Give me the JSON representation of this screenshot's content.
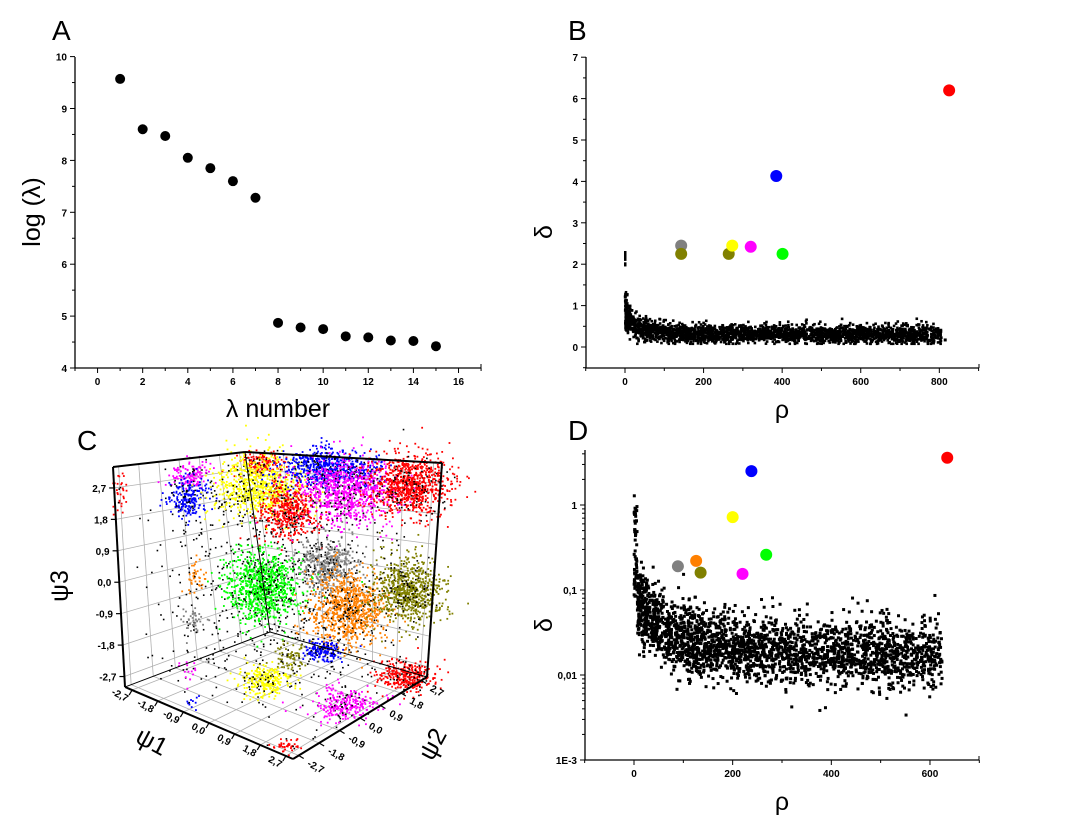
{
  "chart_data": [
    {
      "panel": "A",
      "type": "scatter",
      "xlabel": "λ number",
      "ylabel": "log (λ)",
      "xlim": [
        -1,
        17
      ],
      "ylim": [
        4,
        10
      ],
      "xticks": [
        "0",
        "2",
        "4",
        "6",
        "8",
        "10",
        "12",
        "14",
        "16"
      ],
      "yticks": [
        "4",
        "5",
        "6",
        "7",
        "8",
        "9",
        "10"
      ],
      "grid": false,
      "color": "#000000",
      "points": [
        {
          "x": 1,
          "y": 9.57
        },
        {
          "x": 2,
          "y": 8.6
        },
        {
          "x": 3,
          "y": 8.47
        },
        {
          "x": 4,
          "y": 8.05
        },
        {
          "x": 5,
          "y": 7.85
        },
        {
          "x": 6,
          "y": 7.6
        },
        {
          "x": 7,
          "y": 7.28
        },
        {
          "x": 8,
          "y": 4.87
        },
        {
          "x": 9,
          "y": 4.78
        },
        {
          "x": 10,
          "y": 4.75
        },
        {
          "x": 11,
          "y": 4.61
        },
        {
          "x": 12,
          "y": 4.59
        },
        {
          "x": 13,
          "y": 4.53
        },
        {
          "x": 14,
          "y": 4.52
        },
        {
          "x": 15,
          "y": 4.42
        }
      ]
    },
    {
      "panel": "B",
      "type": "scatter",
      "xlabel": "ρ",
      "ylabel": "δ",
      "xlim": [
        -100,
        900
      ],
      "ylim": [
        -0.5,
        7
      ],
      "xticks": [
        "0",
        "200",
        "400",
        "600",
        "800"
      ],
      "yticks": [
        "0",
        "1",
        "2",
        "3",
        "4",
        "5",
        "6",
        "7"
      ],
      "grid": false,
      "background_color": "#000000",
      "centers": [
        {
          "x": 825,
          "y": 6.2,
          "color": "#ff0000"
        },
        {
          "x": 385,
          "y": 4.13,
          "color": "#0000ff"
        },
        {
          "x": 143,
          "y": 2.45,
          "color": "#808080"
        },
        {
          "x": 143,
          "y": 2.25,
          "color": "#808000"
        },
        {
          "x": 264,
          "y": 2.25,
          "color": "#808000"
        },
        {
          "x": 273,
          "y": 2.45,
          "color": "#ffff00"
        },
        {
          "x": 320,
          "y": 2.42,
          "color": "#ff00ff"
        },
        {
          "x": 401,
          "y": 2.25,
          "color": "#00ff00"
        }
      ]
    },
    {
      "panel": "C",
      "type": "scatter3d",
      "xlabel": "ψ1",
      "ylabel": "ψ2",
      "zlabel": "ψ3",
      "x_ticks": [
        "-2,7",
        "-1,8",
        "-0,9",
        "0,0",
        "0,9",
        "1,8",
        "2,7"
      ],
      "y_ticks": [
        "-2,7",
        "-1,8",
        "-0,9",
        "0,0",
        "0,9",
        "1,8",
        "2,7"
      ],
      "z_ticks": [
        "-2,7",
        "-1,8",
        "-0,9",
        "0,0",
        "0,9",
        "1,8",
        "2,7"
      ],
      "grid": true,
      "cluster_colors": [
        "#ff0000",
        "#0000ff",
        "#ffff00",
        "#ff00ff",
        "#00ff00",
        "#808080",
        "#ff8000",
        "#808000",
        "#000000"
      ]
    },
    {
      "panel": "D",
      "type": "scatter",
      "xlabel": "ρ",
      "ylabel": "δ",
      "xlim": [
        -100,
        700
      ],
      "ylim": [
        0.001,
        4.6
      ],
      "yscale": "log",
      "xticks": [
        "0",
        "200",
        "400",
        "600"
      ],
      "yticks": [
        "1E-3",
        "0,01",
        "0,1",
        "1"
      ],
      "grid": false,
      "background_color": "#000000",
      "centers": [
        {
          "x": 635,
          "y": 3.6,
          "color": "#ff0000"
        },
        {
          "x": 238,
          "y": 2.5,
          "color": "#0000ff"
        },
        {
          "x": 200,
          "y": 0.72,
          "color": "#ffff00"
        },
        {
          "x": 268,
          "y": 0.26,
          "color": "#00ff00"
        },
        {
          "x": 126,
          "y": 0.22,
          "color": "#ff8000"
        },
        {
          "x": 89,
          "y": 0.19,
          "color": "#808080"
        },
        {
          "x": 135,
          "y": 0.16,
          "color": "#808000"
        },
        {
          "x": 220,
          "y": 0.155,
          "color": "#ff00ff"
        }
      ]
    }
  ]
}
